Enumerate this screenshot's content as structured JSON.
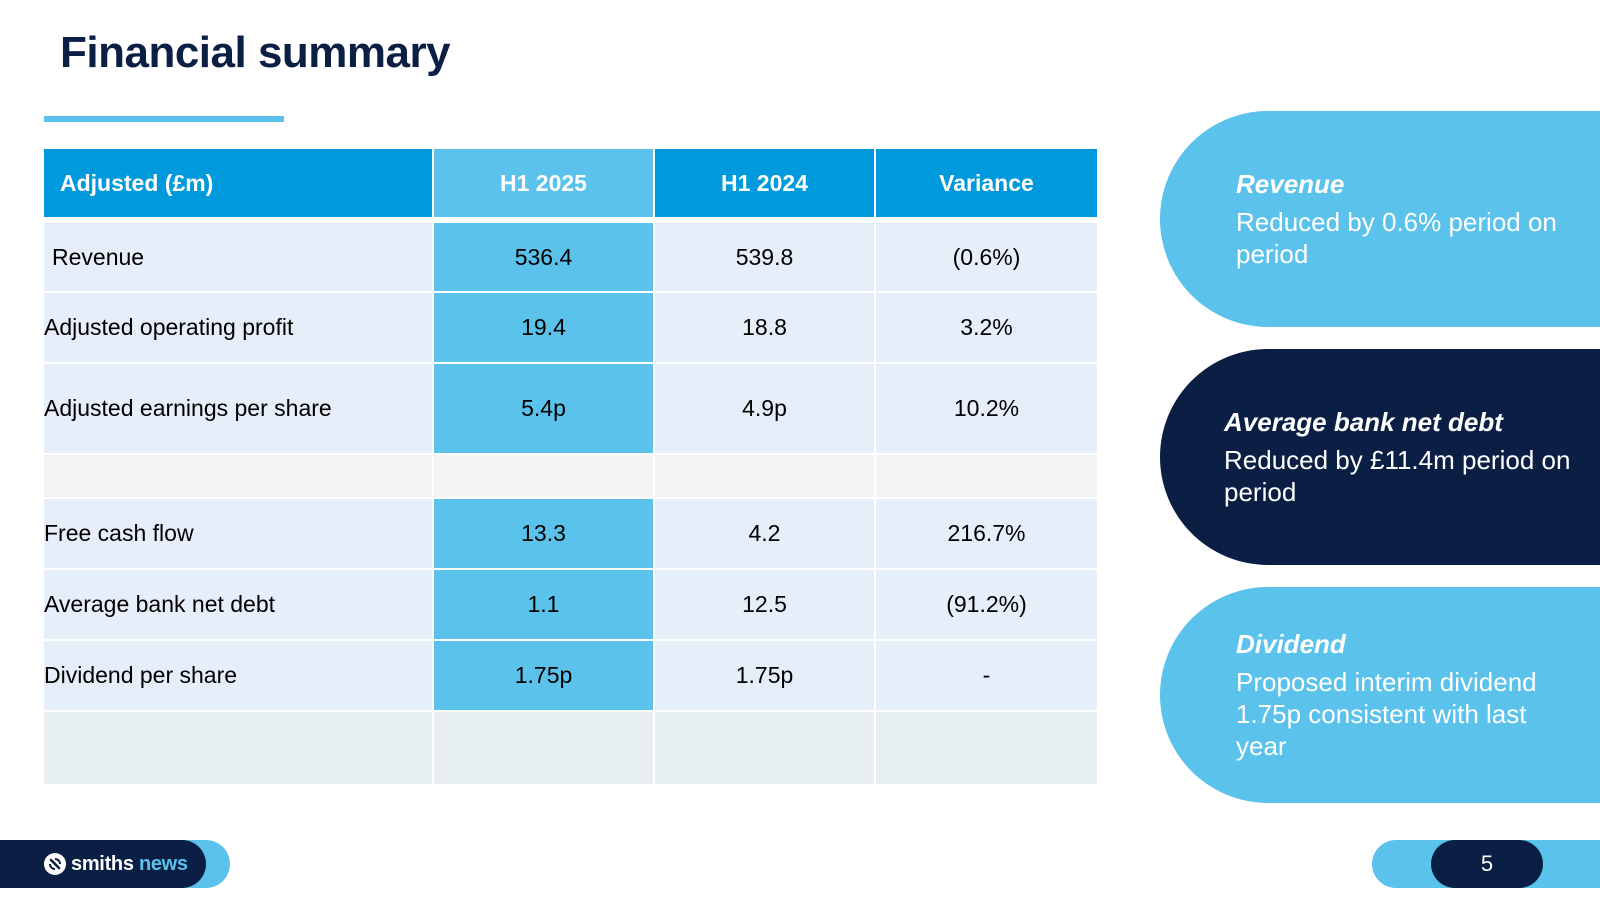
{
  "slide": {
    "title": "Financial summary",
    "page_number": "5"
  },
  "table": {
    "headers": [
      "Adjusted (£m)",
      "H1 2025",
      "H1 2024",
      "Variance"
    ],
    "rows": [
      [
        "Revenue",
        "536.4",
        "539.8",
        "(0.6%)"
      ],
      [
        "Adjusted operating profit",
        "19.4",
        "18.8",
        "3.2%"
      ],
      [
        "Adjusted earnings per share",
        "5.4p",
        "4.9p",
        "10.2%"
      ],
      [
        "Free cash flow",
        "13.3",
        "4.2",
        "216.7%"
      ],
      [
        "Average bank net debt",
        "1.1",
        "12.5",
        "(91.2%)"
      ],
      [
        "Dividend per share",
        "1.75p",
        "1.75p",
        "-"
      ]
    ]
  },
  "callouts": [
    {
      "title": "Revenue",
      "text": "Reduced by 0.6% period on period"
    },
    {
      "title": "Average bank net debt",
      "text": "Reduced by £11.4m period on period"
    },
    {
      "title": "Dividend",
      "text": "Proposed interim dividend 1.75p consistent with last year"
    }
  ],
  "footer": {
    "brand_main": "smiths",
    "brand_news": "news"
  },
  "colors": {
    "navy": "#0b1f45",
    "header_blue": "#0099dc",
    "light_blue": "#5bc2ec",
    "row_bg": "#e5eef9"
  }
}
